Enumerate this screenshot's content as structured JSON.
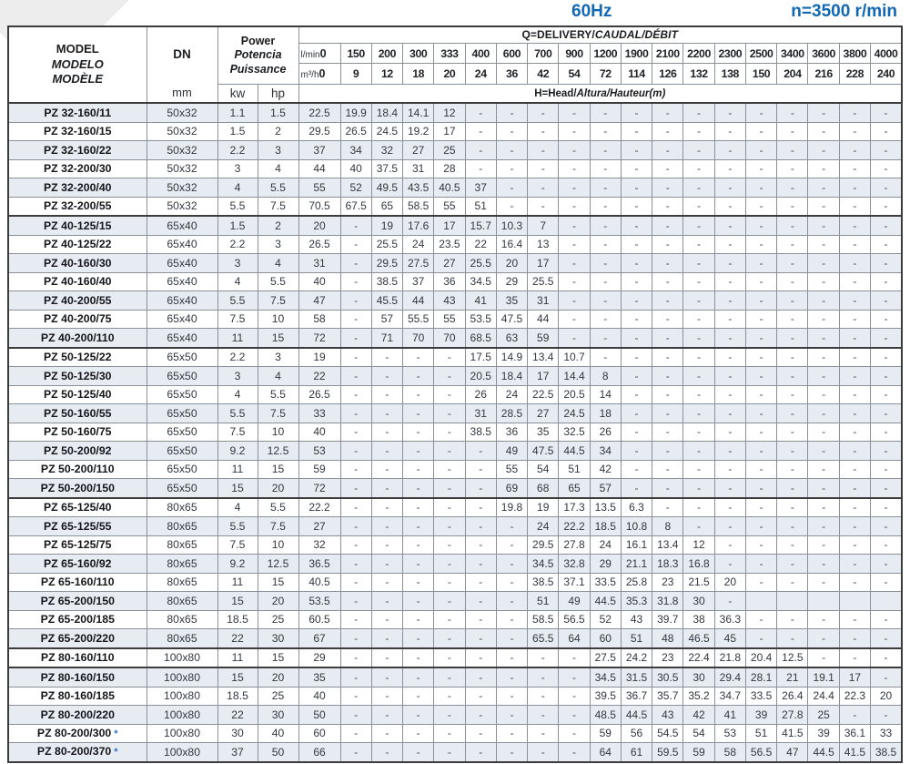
{
  "header": {
    "frequency": "60Hz",
    "speed": "n=3500 r/min"
  },
  "colors": {
    "accent_blue": "#1169b4",
    "row_shade": "#e7ecf3",
    "grid_line": "#8b919a",
    "frame": "#3c3c3c"
  },
  "table": {
    "model_header": [
      "MODEL",
      "MODELO",
      "MODÈLE"
    ],
    "dn_label": "DN",
    "dn_unit": "mm",
    "power_header": [
      "Power",
      "Potencia",
      "Puissance"
    ],
    "power_units": [
      "kw",
      "hp"
    ],
    "q_title_plain": "Q=DELIVERY/",
    "q_title_italic": "CAUDAL/DÉBIT",
    "head_note_plain": "H=Head/",
    "head_note_italic": "Altura/Hauteur(m)",
    "lmin_label": "l/min",
    "m3h_label": "m³/h",
    "lmin_values": [
      "0",
      "150",
      "200",
      "300",
      "333",
      "400",
      "600",
      "700",
      "900",
      "1200",
      "1900",
      "2100",
      "2200",
      "2300",
      "2500",
      "3400",
      "3600",
      "3800",
      "4000"
    ],
    "m3h_values": [
      "0",
      "9",
      "12",
      "18",
      "20",
      "24",
      "36",
      "42",
      "54",
      "72",
      "114",
      "126",
      "132",
      "138",
      "150",
      "204",
      "216",
      "228",
      "240"
    ],
    "rows": [
      {
        "model": "PZ 32-160/11",
        "dn": "50x32",
        "kw": "1.1",
        "hp": "1.5",
        "values": [
          "22.5",
          "19.9",
          "18.4",
          "14.1",
          "12",
          "-",
          "-",
          "-",
          "-",
          "-",
          "-",
          "-",
          "-",
          "-",
          "-",
          "-",
          "-",
          "-",
          "-"
        ]
      },
      {
        "model": "PZ 32-160/15",
        "dn": "50x32",
        "kw": "1.5",
        "hp": "2",
        "values": [
          "29.5",
          "26.5",
          "24.5",
          "19.2",
          "17",
          "-",
          "-",
          "-",
          "-",
          "-",
          "-",
          "-",
          "-",
          "-",
          "-",
          "-",
          "-",
          "-",
          "-"
        ]
      },
      {
        "model": "PZ 32-160/22",
        "dn": "50x32",
        "kw": "2.2",
        "hp": "3",
        "values": [
          "37",
          "34",
          "32",
          "27",
          "25",
          "-",
          "-",
          "-",
          "-",
          "-",
          "-",
          "-",
          "-",
          "-",
          "-",
          "-",
          "-",
          "-",
          "-"
        ]
      },
      {
        "model": "PZ 32-200/30",
        "dn": "50x32",
        "kw": "3",
        "hp": "4",
        "values": [
          "44",
          "40",
          "37.5",
          "31",
          "28",
          "-",
          "-",
          "-",
          "-",
          "-",
          "-",
          "-",
          "-",
          "-",
          "-",
          "-",
          "-",
          "-",
          "-"
        ]
      },
      {
        "model": "PZ 32-200/40",
        "dn": "50x32",
        "kw": "4",
        "hp": "5.5",
        "values": [
          "55",
          "52",
          "49.5",
          "43.5",
          "40.5",
          "37",
          "-",
          "-",
          "-",
          "-",
          "-",
          "-",
          "-",
          "-",
          "-",
          "-",
          "-",
          "-",
          "-"
        ]
      },
      {
        "model": "PZ 32-200/55",
        "dn": "50x32",
        "kw": "5.5",
        "hp": "7.5",
        "values": [
          "70.5",
          "67.5",
          "65",
          "58.5",
          "55",
          "51",
          "-",
          "-",
          "-",
          "-",
          "-",
          "-",
          "-",
          "-",
          "-",
          "-",
          "-",
          "-",
          "-"
        ]
      },
      {
        "model": "PZ 40-125/15",
        "sep": true,
        "dn": "65x40",
        "kw": "1.5",
        "hp": "2",
        "values": [
          "20",
          "-",
          "19",
          "17.6",
          "17",
          "15.7",
          "10.3",
          "7",
          "-",
          "-",
          "-",
          "-",
          "-",
          "-",
          "-",
          "-",
          "-",
          "-",
          "-"
        ]
      },
      {
        "model": "PZ 40-125/22",
        "dn": "65x40",
        "kw": "2.2",
        "hp": "3",
        "values": [
          "26.5",
          "-",
          "25.5",
          "24",
          "23.5",
          "22",
          "16.4",
          "13",
          "-",
          "-",
          "-",
          "-",
          "-",
          "-",
          "-",
          "-",
          "-",
          "-",
          "-"
        ]
      },
      {
        "model": "PZ 40-160/30",
        "dn": "65x40",
        "kw": "3",
        "hp": "4",
        "values": [
          "31",
          "-",
          "29.5",
          "27.5",
          "27",
          "25.5",
          "20",
          "17",
          "-",
          "-",
          "-",
          "-",
          "-",
          "-",
          "-",
          "-",
          "-",
          "-",
          "-"
        ]
      },
      {
        "model": "PZ 40-160/40",
        "dn": "65x40",
        "kw": "4",
        "hp": "5.5",
        "values": [
          "40",
          "-",
          "38.5",
          "37",
          "36",
          "34.5",
          "29",
          "25.5",
          "-",
          "-",
          "-",
          "-",
          "-",
          "-",
          "-",
          "-",
          "-",
          "-",
          "-"
        ]
      },
      {
        "model": "PZ 40-200/55",
        "dn": "65x40",
        "kw": "5.5",
        "hp": "7.5",
        "values": [
          "47",
          "-",
          "45.5",
          "44",
          "43",
          "41",
          "35",
          "31",
          "-",
          "-",
          "-",
          "-",
          "-",
          "-",
          "-",
          "-",
          "-",
          "-",
          "-"
        ]
      },
      {
        "model": "PZ 40-200/75",
        "dn": "65x40",
        "kw": "7.5",
        "hp": "10",
        "values": [
          "58",
          "-",
          "57",
          "55.5",
          "55",
          "53.5",
          "47.5",
          "44",
          "-",
          "-",
          "-",
          "-",
          "-",
          "-",
          "-",
          "-",
          "-",
          "-",
          "-"
        ]
      },
      {
        "model": "PZ 40-200/110",
        "dn": "65x40",
        "kw": "11",
        "hp": "15",
        "values": [
          "72",
          "-",
          "71",
          "70",
          "70",
          "68.5",
          "63",
          "59",
          "-",
          "-",
          "-",
          "-",
          "-",
          "-",
          "-",
          "-",
          "-",
          "-",
          "-"
        ]
      },
      {
        "model": "PZ 50-125/22",
        "sep": true,
        "dn": "65x50",
        "kw": "2.2",
        "hp": "3",
        "values": [
          "19",
          "-",
          "-",
          "-",
          "-",
          "17.5",
          "14.9",
          "13.4",
          "10.7",
          "-",
          "-",
          "-",
          "-",
          "-",
          "-",
          "-",
          "-",
          "-",
          "-"
        ]
      },
      {
        "model": "PZ 50-125/30",
        "dn": "65x50",
        "kw": "3",
        "hp": "4",
        "values": [
          "22",
          "-",
          "-",
          "-",
          "-",
          "20.5",
          "18.4",
          "17",
          "14.4",
          "8",
          "-",
          "-",
          "-",
          "-",
          "-",
          "-",
          "-",
          "-",
          "-"
        ]
      },
      {
        "model": "PZ 50-125/40",
        "dn": "65x50",
        "kw": "4",
        "hp": "5.5",
        "values": [
          "26.5",
          "-",
          "-",
          "-",
          "-",
          "26",
          "24",
          "22.5",
          "20.5",
          "14",
          "-",
          "-",
          "-",
          "-",
          "-",
          "-",
          "-",
          "-",
          "-"
        ]
      },
      {
        "model": "PZ 50-160/55",
        "dn": "65x50",
        "kw": "5.5",
        "hp": "7.5",
        "values": [
          "33",
          "-",
          "-",
          "-",
          "-",
          "31",
          "28.5",
          "27",
          "24.5",
          "18",
          "-",
          "-",
          "-",
          "-",
          "-",
          "-",
          "-",
          "-",
          "-"
        ]
      },
      {
        "model": "PZ 50-160/75",
        "dn": "65x50",
        "kw": "7.5",
        "hp": "10",
        "values": [
          "40",
          "-",
          "-",
          "-",
          "-",
          "38.5",
          "36",
          "35",
          "32.5",
          "26",
          "-",
          "-",
          "-",
          "-",
          "-",
          "-",
          "-",
          "-",
          "-"
        ]
      },
      {
        "model": "PZ 50-200/92",
        "dn": "65x50",
        "kw": "9.2",
        "hp": "12.5",
        "values": [
          "53",
          "-",
          "-",
          "-",
          "-",
          "-",
          "49",
          "47.5",
          "44.5",
          "34",
          "-",
          "-",
          "-",
          "-",
          "-",
          "-",
          "-",
          "-",
          "-"
        ]
      },
      {
        "model": "PZ 50-200/110",
        "dn": "65x50",
        "kw": "11",
        "hp": "15",
        "values": [
          "59",
          "-",
          "-",
          "-",
          "-",
          "-",
          "55",
          "54",
          "51",
          "42",
          "-",
          "-",
          "-",
          "-",
          "-",
          "-",
          "-",
          "-",
          "-"
        ]
      },
      {
        "model": "PZ 50-200/150",
        "dn": "65x50",
        "kw": "15",
        "hp": "20",
        "values": [
          "72",
          "-",
          "-",
          "-",
          "-",
          "-",
          "69",
          "68",
          "65",
          "57",
          "-",
          "-",
          "-",
          "-",
          "-",
          "-",
          "-",
          "-",
          "-"
        ]
      },
      {
        "model": "PZ 65-125/40",
        "sep": true,
        "dn": "80x65",
        "kw": "4",
        "hp": "5.5",
        "values": [
          "22.2",
          "-",
          "-",
          "-",
          "-",
          "-",
          "19.8",
          "19",
          "17.3",
          "13.5",
          "6.3",
          "-",
          "-",
          "-",
          "-",
          "-",
          "-",
          "-",
          "-"
        ]
      },
      {
        "model": "PZ 65-125/55",
        "dn": "80x65",
        "kw": "5.5",
        "hp": "7.5",
        "values": [
          "27",
          "-",
          "-",
          "-",
          "-",
          "-",
          "-",
          "24",
          "22.2",
          "18.5",
          "10.8",
          "8",
          "-",
          "-",
          "-",
          "-",
          "-",
          "-",
          "-"
        ]
      },
      {
        "model": "PZ 65-125/75",
        "dn": "80x65",
        "kw": "7.5",
        "hp": "10",
        "values": [
          "32",
          "-",
          "-",
          "-",
          "-",
          "-",
          "-",
          "29.5",
          "27.8",
          "24",
          "16.1",
          "13.4",
          "12",
          "-",
          "-",
          "-",
          "-",
          "-",
          "-"
        ]
      },
      {
        "model": "PZ 65-160/92",
        "dn": "80x65",
        "kw": "9.2",
        "hp": "12.5",
        "values": [
          "36.5",
          "-",
          "-",
          "-",
          "-",
          "-",
          "-",
          "34.5",
          "32.8",
          "29",
          "21.1",
          "18.3",
          "16.8",
          "-",
          "-",
          "-",
          "-",
          "-",
          "-"
        ]
      },
      {
        "model": "PZ 65-160/110",
        "dn": "80x65",
        "kw": "11",
        "hp": "15",
        "values": [
          "40.5",
          "-",
          "-",
          "-",
          "-",
          "-",
          "-",
          "38.5",
          "37.1",
          "33.5",
          "25.8",
          "23",
          "21.5",
          "20",
          "-",
          "-",
          "-",
          "-",
          "-"
        ]
      },
      {
        "model": "PZ 65-200/150",
        "dn": "80x65",
        "kw": "15",
        "hp": "20",
        "values": [
          "53.5",
          "-",
          "-",
          "-",
          "-",
          "-",
          "-",
          "51",
          "49",
          "44.5",
          "35.3",
          "31.8",
          "30",
          "-",
          "",
          "",
          "",
          "",
          ""
        ]
      },
      {
        "model": "PZ 65-200/185",
        "dn": "80x65",
        "kw": "18.5",
        "hp": "25",
        "values": [
          "60.5",
          "-",
          "-",
          "-",
          "-",
          "-",
          "-",
          "58.5",
          "56.5",
          "52",
          "43",
          "39.7",
          "38",
          "36.3",
          "-",
          "-",
          "-",
          "-",
          "-"
        ]
      },
      {
        "model": "PZ 65-200/220",
        "dn": "80x65",
        "kw": "22",
        "hp": "30",
        "values": [
          "67",
          "-",
          "-",
          "-",
          "-",
          "-",
          "-",
          "65.5",
          "64",
          "60",
          "51",
          "48",
          "46.5",
          "45",
          "-",
          "-",
          "-",
          "-",
          "-"
        ]
      },
      {
        "model": "PZ 80-160/110",
        "sep": true,
        "dn": "100x80",
        "kw": "11",
        "hp": "15",
        "values": [
          "29",
          "-",
          "-",
          "-",
          "-",
          "-",
          "-",
          "-",
          "-",
          "27.5",
          "24.2",
          "23",
          "22.4",
          "21.8",
          "20.4",
          "12.5",
          "-",
          "-",
          "-"
        ]
      },
      {
        "model": "PZ 80-160/150",
        "sep": true,
        "dn": "100x80",
        "kw": "15",
        "hp": "20",
        "values": [
          "35",
          "-",
          "-",
          "-",
          "-",
          "-",
          "-",
          "-",
          "-",
          "34.5",
          "31.5",
          "30.5",
          "30",
          "29.4",
          "28.1",
          "21",
          "19.1",
          "17",
          "-"
        ]
      },
      {
        "model": "PZ 80-160/185",
        "dn": "100x80",
        "kw": "18.5",
        "hp": "25",
        "values": [
          "40",
          "-",
          "-",
          "-",
          "-",
          "-",
          "-",
          "-",
          "-",
          "39.5",
          "36.7",
          "35.7",
          "35.2",
          "34.7",
          "33.5",
          "26.4",
          "24.4",
          "22.3",
          "20"
        ]
      },
      {
        "model": "PZ 80-200/220",
        "dn": "100x80",
        "kw": "22",
        "hp": "30",
        "values": [
          "50",
          "-",
          "-",
          "-",
          "-",
          "-",
          "-",
          "-",
          "-",
          "48.5",
          "44.5",
          "43",
          "42",
          "41",
          "39",
          "27.8",
          "25",
          "-",
          "-"
        ]
      },
      {
        "model": "PZ 80-200/300",
        "star": true,
        "dn": "100x80",
        "kw": "30",
        "hp": "40",
        "values": [
          "60",
          "-",
          "-",
          "-",
          "-",
          "-",
          "-",
          "-",
          "-",
          "59",
          "56",
          "54.5",
          "54",
          "53",
          "51",
          "41.5",
          "39",
          "36.1",
          "33"
        ]
      },
      {
        "model": "PZ 80-200/370",
        "star": true,
        "dn": "100x80",
        "kw": "37",
        "hp": "50",
        "values": [
          "66",
          "-",
          "-",
          "-",
          "-",
          "-",
          "-",
          "-",
          "-",
          "64",
          "61",
          "59.5",
          "59",
          "58",
          "56.5",
          "47",
          "44.5",
          "41.5",
          "38.5"
        ]
      }
    ]
  }
}
